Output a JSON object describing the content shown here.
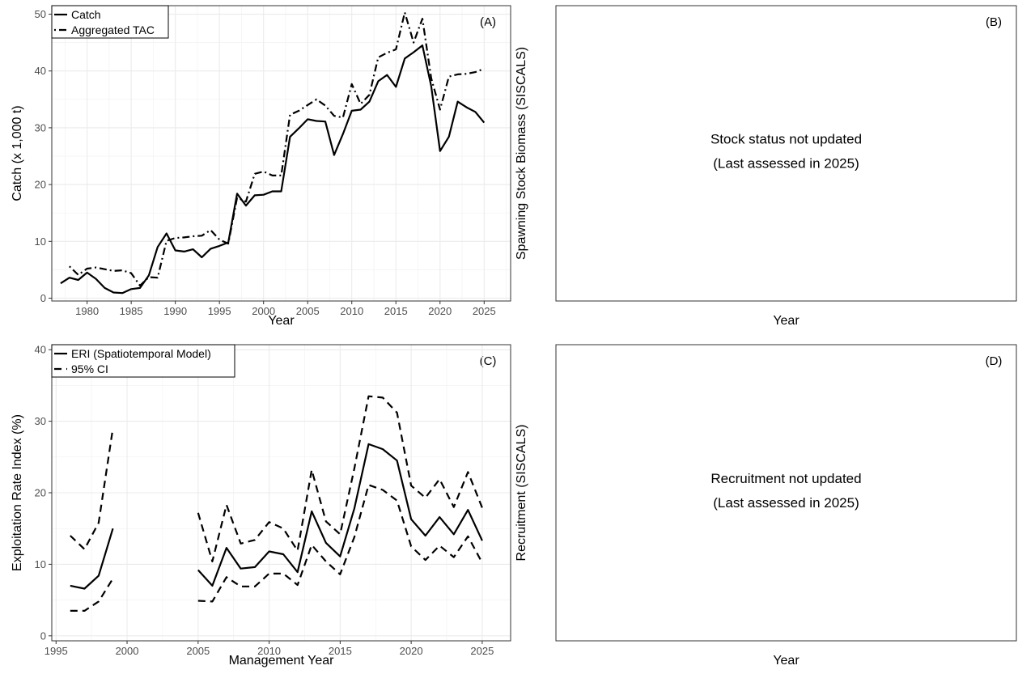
{
  "chart_data": [
    {
      "panel": "(A)",
      "type": "line",
      "xlabel": "Year",
      "ylabel": "Catch (x 1,000 t)",
      "xlim": [
        1976,
        2028
      ],
      "ylim": [
        -0.5,
        51.5
      ],
      "xticks": [
        1980,
        1985,
        1990,
        1995,
        2000,
        2005,
        2010,
        2015,
        2020,
        2025
      ],
      "yticks": [
        0,
        10,
        20,
        30,
        40,
        50
      ],
      "grid": true,
      "legend_position": "top-left",
      "series": [
        {
          "name": "Catch",
          "style": "solid",
          "x": [
            1977,
            1978,
            1979,
            1980,
            1981,
            1982,
            1983,
            1984,
            1985,
            1986,
            1987,
            1988,
            1989,
            1990,
            1991,
            1992,
            1993,
            1994,
            1995,
            1996,
            1997,
            1998,
            1999,
            2000,
            2001,
            2002,
            2003,
            2004,
            2005,
            2006,
            2007,
            2008,
            2009,
            2010,
            2011,
            2012,
            2013,
            2014,
            2015,
            2016,
            2017,
            2018,
            2019,
            2020,
            2021,
            2022,
            2023,
            2024,
            2025
          ],
          "values": [
            2.6,
            3.6,
            3.2,
            4.5,
            3.4,
            1.8,
            1.0,
            0.9,
            1.6,
            1.8,
            4.0,
            9.0,
            11.4,
            8.4,
            8.2,
            8.6,
            7.2,
            8.7,
            9.2,
            9.8,
            18.4,
            16.3,
            18.1,
            18.2,
            18.8,
            18.8,
            28.4,
            29.9,
            31.5,
            31.2,
            31.1,
            25.2,
            28.9,
            33.0,
            33.2,
            34.6,
            38.2,
            39.3,
            37.2,
            42.2,
            43.3,
            44.5,
            37.3,
            25.9,
            28.4,
            34.6,
            33.6,
            32.8,
            30.9
          ]
        },
        {
          "name": "Aggregated TAC",
          "style": "dotdash",
          "x": [
            1978,
            1979,
            1980,
            1981,
            1982,
            1983,
            1984,
            1985,
            1986,
            1987,
            1988,
            1989,
            1990,
            1991,
            1992,
            1993,
            1994,
            1995,
            1996,
            1997,
            1998,
            1999,
            2000,
            2001,
            2002,
            2003,
            2004,
            2005,
            2006,
            2007,
            2008,
            2009,
            2010,
            2011,
            2012,
            2013,
            2014,
            2015,
            2016,
            2017,
            2018,
            2019,
            2020,
            2021,
            2022,
            2023,
            2024,
            2025
          ],
          "values": [
            5.6,
            4.1,
            5.2,
            5.4,
            5.1,
            4.8,
            4.9,
            4.4,
            2.2,
            3.7,
            3.6,
            10.1,
            10.6,
            10.7,
            10.9,
            11.0,
            12.0,
            10.3,
            9.6,
            17.7,
            17.0,
            21.9,
            22.3,
            21.6,
            21.6,
            32.3,
            33.0,
            34.0,
            35.0,
            33.9,
            32.1,
            31.8,
            37.7,
            34.2,
            35.8,
            42.4,
            43.2,
            43.8,
            50.3,
            45.0,
            49.2,
            38.7,
            33.2,
            39.0,
            39.4,
            39.5,
            39.8,
            40.4
          ]
        }
      ]
    },
    {
      "panel": "(B)",
      "type": "line",
      "xlabel": "Year",
      "ylabel": "Spawning Stock Biomass (SISCALS)",
      "message": [
        "Stock status not updated",
        "(Last assessed in 2025)"
      ]
    },
    {
      "panel": "(C)",
      "type": "line",
      "xlabel": "Management Year",
      "ylabel": "Exploitation Rate Index (%)",
      "xlim": [
        1994.7,
        2027.0
      ],
      "ylim": [
        -0.7,
        40.7
      ],
      "xticks": [
        1995,
        2000,
        2005,
        2010,
        2015,
        2020,
        2025
      ],
      "yticks": [
        0,
        10,
        20,
        30,
        40
      ],
      "grid": true,
      "legend_position": "top-left",
      "series": [
        {
          "name": "ERI (Spatiotemporal Model)",
          "style": "solid",
          "segments": [
            {
              "x": [
                1996,
                1997,
                1998,
                1999
              ],
              "values": [
                7.0,
                6.6,
                8.4,
                15.0
              ]
            },
            {
              "x": [
                2005,
                2006,
                2007,
                2008,
                2009,
                2010,
                2011,
                2012,
                2013,
                2014,
                2015,
                2016,
                2017,
                2018,
                2019,
                2020,
                2021,
                2022,
                2023,
                2024,
                2025
              ],
              "values": [
                9.2,
                7.0,
                12.3,
                9.4,
                9.6,
                11.8,
                11.4,
                8.9,
                17.4,
                13.0,
                11.1,
                17.8,
                26.8,
                26.1,
                24.5,
                16.3,
                14.0,
                16.6,
                14.2,
                17.6,
                13.3
              ]
            }
          ]
        },
        {
          "name": "95% CI",
          "style": "dashed",
          "segments": [
            {
              "x": [
                1996,
                1997,
                1998,
                1999
              ],
              "values": [
                14.0,
                12.1,
                15.8,
                29.0
              ]
            },
            {
              "x": [
                1996,
                1997,
                1998,
                1999
              ],
              "values": [
                3.5,
                3.5,
                4.8,
                8.0
              ]
            },
            {
              "x": [
                2005,
                2006,
                2007,
                2008,
                2009,
                2010,
                2011,
                2012,
                2013,
                2014,
                2015,
                2016,
                2017,
                2018,
                2019,
                2020,
                2021,
                2022,
                2023,
                2024,
                2025
              ],
              "values": [
                17.2,
                10.4,
                18.3,
                12.9,
                13.4,
                15.9,
                15.0,
                11.9,
                23.2,
                16.0,
                14.2,
                23.4,
                33.5,
                33.3,
                31.2,
                21.0,
                19.3,
                21.9,
                18.0,
                22.9,
                17.9
              ]
            },
            {
              "x": [
                2005,
                2006,
                2007,
                2008,
                2009,
                2010,
                2011,
                2012,
                2013,
                2014,
                2015,
                2016,
                2017,
                2018,
                2019,
                2020,
                2021,
                2022,
                2023,
                2024,
                2025
              ],
              "values": [
                4.9,
                4.8,
                8.2,
                6.9,
                6.9,
                8.7,
                8.7,
                7.1,
                12.7,
                10.4,
                8.6,
                13.8,
                21.1,
                20.4,
                18.9,
                12.5,
                10.6,
                12.6,
                11.0,
                13.9,
                10.2
              ]
            }
          ]
        }
      ]
    },
    {
      "panel": "(D)",
      "type": "line",
      "xlabel": "Year",
      "ylabel": "Recruitment (SISCALS)",
      "message": [
        "Recruitment not updated",
        "(Last assessed in 2025)"
      ]
    }
  ]
}
